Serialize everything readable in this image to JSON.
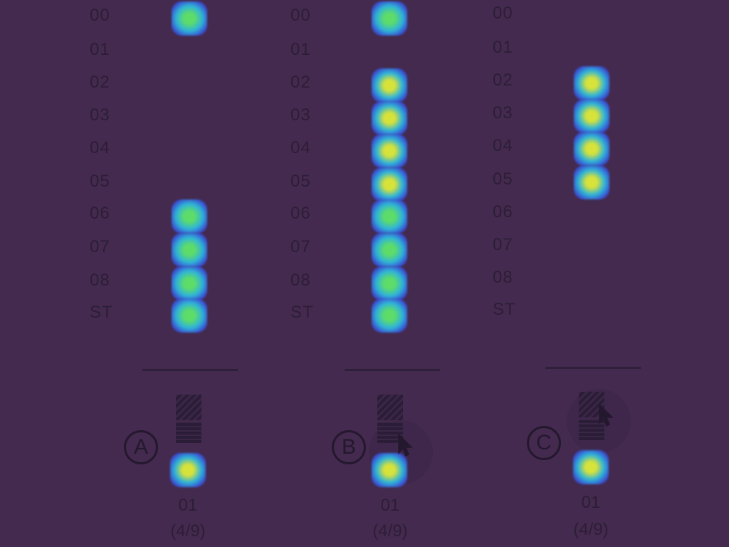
{
  "colors": {
    "background": "#442a4e",
    "label": "#2c1e37",
    "dot_green": "#5ddc6a",
    "dot_yellow": "#d7e23a",
    "dot_cyan": "#2fb3d8",
    "dot_blue": "#3a4ed0"
  },
  "panels": [
    {
      "badge": "A",
      "rows": [
        "00",
        "01",
        "02",
        "03",
        "04",
        "05",
        "06",
        "07",
        "08",
        "ST"
      ],
      "active": [
        "green",
        null,
        null,
        null,
        null,
        null,
        "green",
        "green",
        "green",
        "green"
      ],
      "value": "01",
      "fraction": "(4/9)",
      "cursor": false
    },
    {
      "badge": "B",
      "rows": [
        "00",
        "01",
        "02",
        "03",
        "04",
        "05",
        "06",
        "07",
        "08",
        "ST"
      ],
      "active": [
        "green",
        null,
        "yellow",
        "yellow",
        "yellow",
        "yellow",
        "green",
        "green",
        "green",
        "green"
      ],
      "value": "01",
      "fraction": "(4/9)",
      "cursor": true
    },
    {
      "badge": "C",
      "rows": [
        "00",
        "01",
        "02",
        "03",
        "04",
        "05",
        "06",
        "07",
        "08",
        "ST"
      ],
      "active": [
        null,
        null,
        "yellow",
        "yellow",
        "yellow",
        "yellow",
        null,
        null,
        null,
        null
      ],
      "value": "01",
      "fraction": "(4/9)",
      "cursor": true
    }
  ]
}
